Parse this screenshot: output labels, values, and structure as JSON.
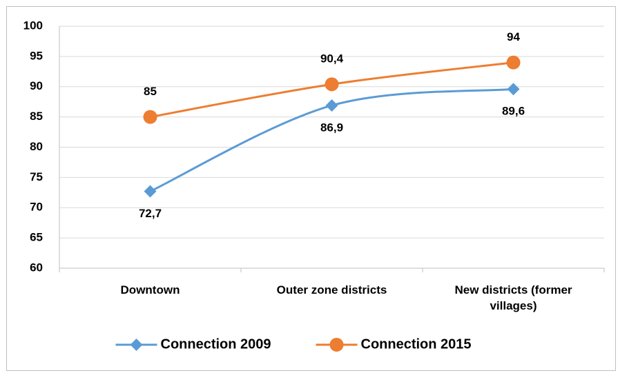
{
  "chart_data": {
    "type": "line",
    "categories": [
      "Downtown",
      "Outer zone districts",
      "New districts (former villages)"
    ],
    "series": [
      {
        "name": "Connection 2009",
        "color": "#5b9bd5",
        "marker": "diamond",
        "values": [
          72.7,
          86.9,
          89.6
        ],
        "value_labels": [
          "72,7",
          "86,9",
          "89,6"
        ],
        "label_position": "below"
      },
      {
        "name": "Connection 2015",
        "color": "#ed7d31",
        "marker": "circle",
        "values": [
          85,
          90.4,
          94
        ],
        "value_labels": [
          "85",
          "90,4",
          "94"
        ],
        "label_position": "above"
      }
    ],
    "ylim": [
      60,
      100
    ],
    "yticks": [
      60,
      65,
      70,
      75,
      80,
      85,
      90,
      95,
      100
    ],
    "grid": true,
    "smooth": true,
    "legend": "bottom"
  }
}
